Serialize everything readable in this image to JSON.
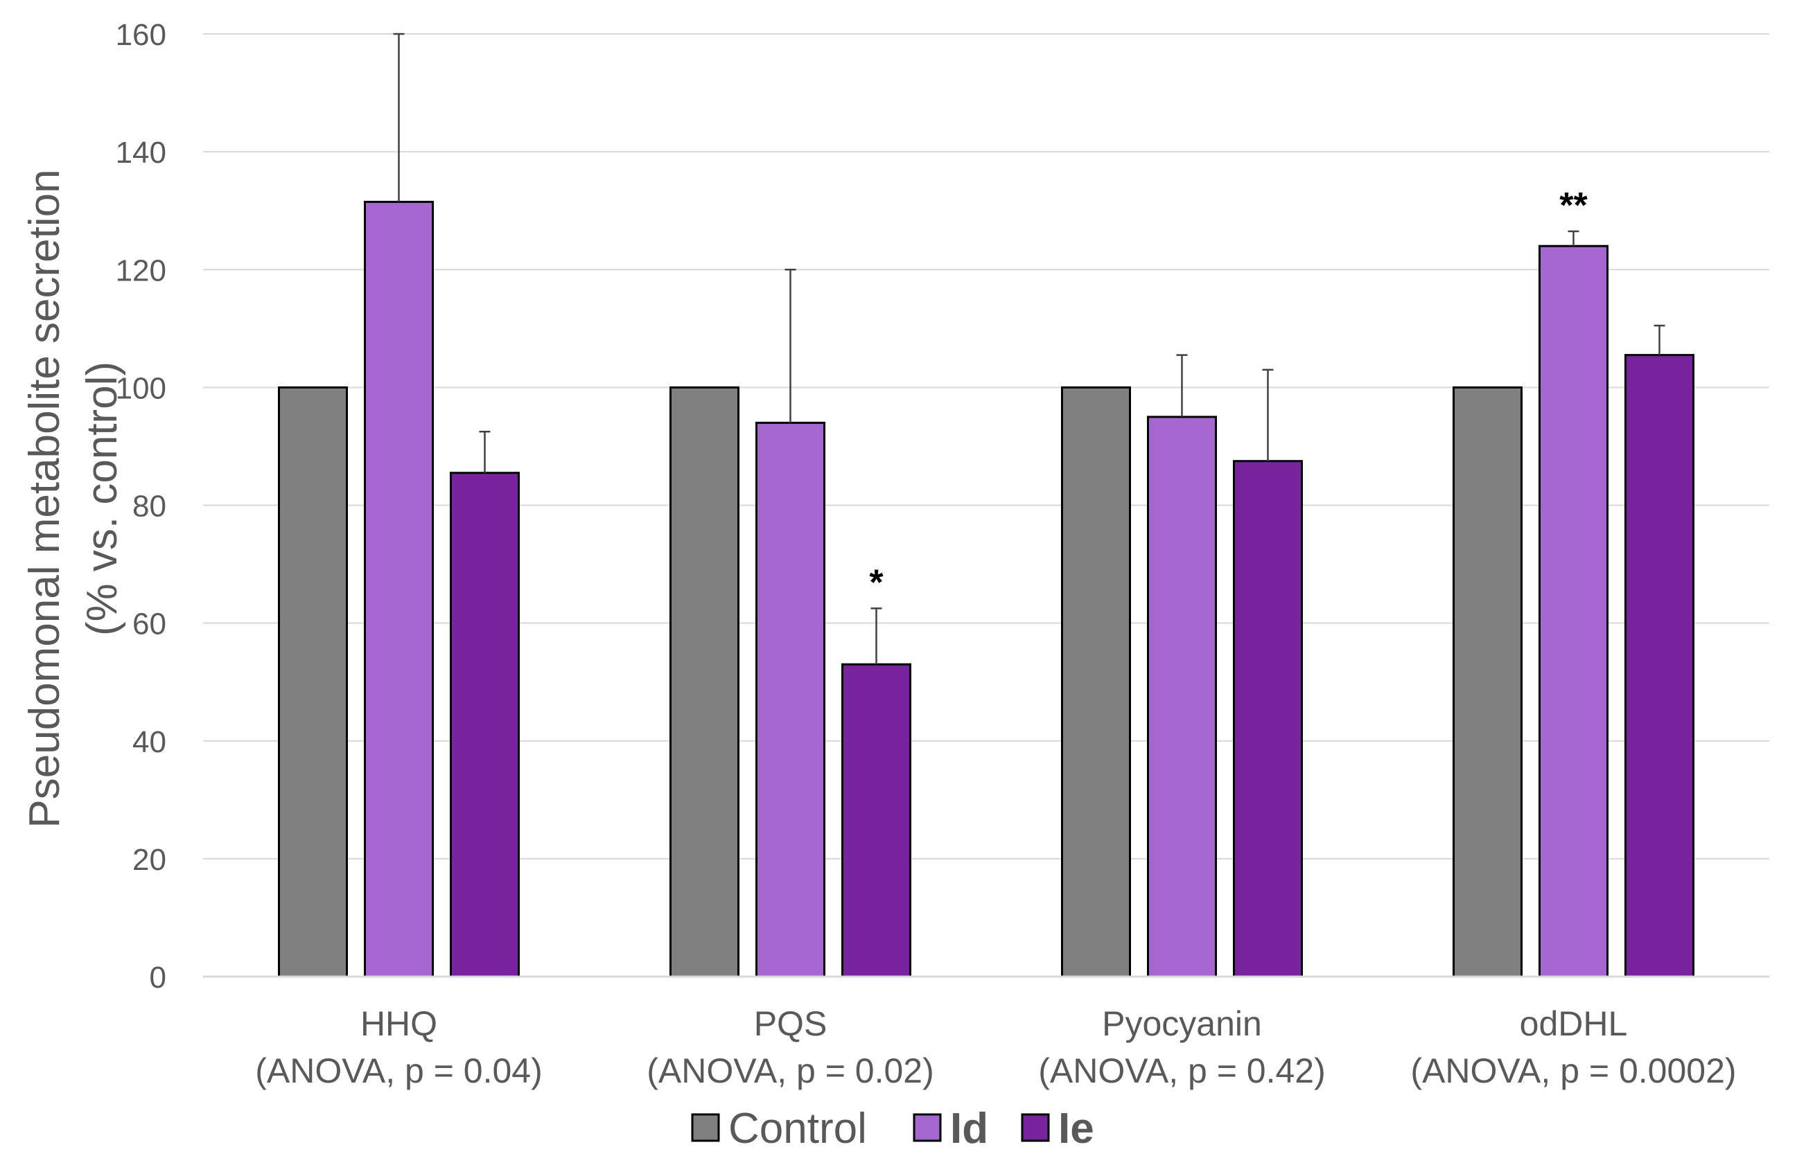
{
  "chart_data": {
    "type": "bar",
    "title": "",
    "ylabel": "Pseudomonal metabolite secretion",
    "ylabel_line2": "(% vs. control)",
    "xlabel": "",
    "ylim": [
      0,
      160
    ],
    "yticks": [
      0,
      20,
      40,
      60,
      80,
      100,
      120,
      140,
      160
    ],
    "grid": true,
    "legend_position": "bottom",
    "categories": [
      "HHQ",
      "PQS",
      "Pyocyanin",
      "odDHL"
    ],
    "category_subtitles": [
      "(ANOVA, p = 0.04)",
      "(ANOVA, p = 0.02)",
      "(ANOVA, p = 0.42)",
      "(ANOVA, p = 0.0002)"
    ],
    "series": [
      {
        "name": "Control",
        "color": "#808080",
        "bold": false,
        "values": [
          100,
          100,
          100,
          100
        ],
        "errors": [
          0,
          0,
          0,
          0
        ],
        "significance": [
          "",
          "",
          "",
          ""
        ]
      },
      {
        "name": "Id",
        "color": "#A566CF",
        "bold": true,
        "values": [
          131.5,
          94,
          95,
          124
        ],
        "errors": [
          28.5,
          26,
          10.5,
          2.5
        ],
        "significance": [
          "",
          "",
          "",
          "**"
        ]
      },
      {
        "name": "Ie",
        "color": "#79249E",
        "bold": true,
        "values": [
          85.5,
          53,
          87.5,
          105.5
        ],
        "errors": [
          7,
          9.5,
          15.5,
          5
        ],
        "significance": [
          "",
          "*",
          "",
          ""
        ]
      }
    ]
  }
}
